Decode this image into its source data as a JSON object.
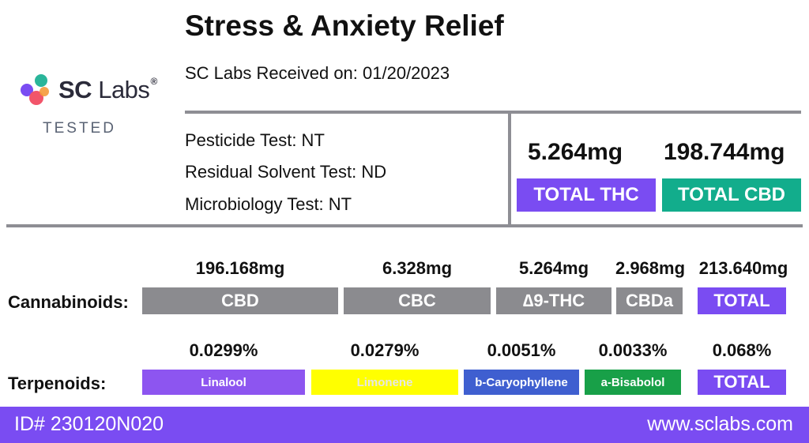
{
  "header": {
    "title": "Stress & Anxiety Relief",
    "received": "SC Labs Received on: 01/20/2023"
  },
  "logo": {
    "name_bold": "SC",
    "name_light": "Labs",
    "registered": "®",
    "tested": "TESTED"
  },
  "tests": {
    "pesticide": "Pesticide Test: NT",
    "residual": "Residual Solvent Test: ND",
    "micro": "Microbiology Test: NT"
  },
  "totals": {
    "thc_value": "5.264mg",
    "thc_label": "TOTAL THC",
    "cbd_value": "198.744mg",
    "cbd_label": "TOTAL CBD"
  },
  "cannabinoids": {
    "label": "Cannabinoids:",
    "items": [
      {
        "value": "196.168mg",
        "name": "CBD"
      },
      {
        "value": "6.328mg",
        "name": "CBC"
      },
      {
        "value": "5.264mg",
        "name": "∆9-THC"
      },
      {
        "value": "2.968mg",
        "name": "CBDa"
      },
      {
        "value": "213.640mg",
        "name": "TOTAL"
      }
    ]
  },
  "terpenoids": {
    "label": "Terpenoids:",
    "items": [
      {
        "value": "0.0299%",
        "name": "Linalool"
      },
      {
        "value": "0.0279%",
        "name": "Limonene"
      },
      {
        "value": "0.0051%",
        "name": "b-Caryophyllene"
      },
      {
        "value": "0.0033%",
        "name": "a-Bisabolol"
      },
      {
        "value": "0.068%",
        "name": "TOTAL"
      }
    ]
  },
  "footer": {
    "id": "ID# 230120N020",
    "url": "www.sclabs.com"
  },
  "colors": {
    "purple": "#7a4cf2",
    "teal": "#12ad8c",
    "gray": "#8b8b8f",
    "linalool": "#8d55f0",
    "limonene": "#ffff00",
    "caryophyllene": "#3f5fd0",
    "bisabolol": "#18a048"
  }
}
